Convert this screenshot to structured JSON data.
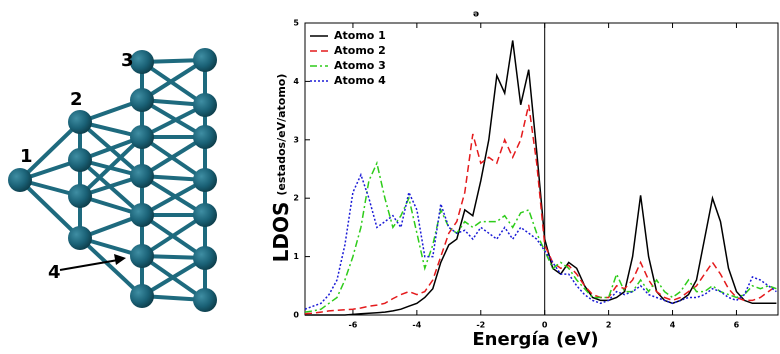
{
  "diagram": {
    "labels": [
      "1",
      "2",
      "3",
      "4"
    ]
  },
  "chart_data": {
    "type": "line",
    "annotation": "ə",
    "xlabel": "Energía (eV)",
    "ylabel": "LDOS",
    "ylabel_unit": "(estados/eV/atomo)",
    "xlim": [
      -7.5,
      7.3
    ],
    "ylim": [
      0,
      5
    ],
    "xticks": [
      -6,
      -4,
      -2,
      0,
      2,
      4,
      6
    ],
    "yticks": [
      0,
      1,
      2,
      3,
      4,
      5
    ],
    "vline": 0,
    "legend": "upper left",
    "x": [
      -7.5,
      -7.25,
      -7,
      -6.75,
      -6.5,
      -6.25,
      -6,
      -5.75,
      -5.5,
      -5.25,
      -5,
      -4.75,
      -4.5,
      -4.25,
      -4,
      -3.75,
      -3.5,
      -3.25,
      -3,
      -2.75,
      -2.5,
      -2.25,
      -2,
      -1.75,
      -1.5,
      -1.25,
      -1,
      -0.75,
      -0.5,
      -0.25,
      0,
      0.25,
      0.5,
      0.75,
      1,
      1.25,
      1.5,
      1.75,
      2,
      2.25,
      2.5,
      2.75,
      3,
      3.25,
      3.5,
      3.75,
      4,
      4.25,
      4.5,
      4.75,
      5,
      5.25,
      5.5,
      5.75,
      6,
      6.25,
      6.5,
      6.75,
      7,
      7.25
    ],
    "series": [
      {
        "name": "Atomo 1",
        "color": "#000000",
        "style": "solid",
        "values": [
          0,
          0,
          0,
          0,
          0,
          0,
          0.01,
          0.02,
          0.03,
          0.04,
          0.05,
          0.07,
          0.1,
          0.15,
          0.2,
          0.3,
          0.45,
          0.9,
          1.2,
          1.3,
          1.8,
          1.7,
          2.3,
          3.0,
          4.1,
          3.8,
          4.7,
          3.6,
          4.2,
          2.8,
          1.3,
          0.8,
          0.7,
          0.9,
          0.8,
          0.5,
          0.3,
          0.25,
          0.25,
          0.3,
          0.4,
          1.0,
          2.05,
          1.0,
          0.4,
          0.25,
          0.2,
          0.25,
          0.35,
          0.6,
          1.3,
          2.0,
          1.6,
          0.8,
          0.4,
          0.25,
          0.2,
          0.2,
          0.2,
          0.2
        ]
      },
      {
        "name": "Atomo 2",
        "color": "#e41a1c",
        "style": "dashed",
        "values": [
          0.02,
          0.03,
          0.05,
          0.07,
          0.08,
          0.09,
          0.1,
          0.12,
          0.15,
          0.17,
          0.2,
          0.28,
          0.35,
          0.4,
          0.35,
          0.4,
          0.6,
          1.0,
          1.4,
          1.6,
          2.1,
          3.1,
          2.6,
          2.7,
          2.6,
          3.0,
          2.7,
          3.0,
          3.6,
          2.6,
          1.2,
          0.9,
          0.8,
          0.85,
          0.7,
          0.5,
          0.35,
          0.3,
          0.3,
          0.5,
          0.45,
          0.6,
          0.9,
          0.6,
          0.4,
          0.3,
          0.25,
          0.3,
          0.4,
          0.5,
          0.7,
          0.9,
          0.7,
          0.45,
          0.3,
          0.25,
          0.25,
          0.3,
          0.4,
          0.5
        ]
      },
      {
        "name": "Atomo 3",
        "color": "#2ecc1a",
        "style": "dashdot",
        "values": [
          0.05,
          0.07,
          0.1,
          0.2,
          0.3,
          0.6,
          1.0,
          1.5,
          2.3,
          2.6,
          2.0,
          1.5,
          1.7,
          2.0,
          1.4,
          0.8,
          1.2,
          1.8,
          1.5,
          1.4,
          1.6,
          1.5,
          1.6,
          1.6,
          1.6,
          1.7,
          1.5,
          1.75,
          1.8,
          1.4,
          1.1,
          0.8,
          0.9,
          0.8,
          0.6,
          0.45,
          0.3,
          0.3,
          0.3,
          0.7,
          0.4,
          0.4,
          0.6,
          0.4,
          0.6,
          0.4,
          0.3,
          0.4,
          0.6,
          0.4,
          0.4,
          0.5,
          0.4,
          0.35,
          0.3,
          0.35,
          0.5,
          0.45,
          0.5,
          0.45
        ]
      },
      {
        "name": "Atomo 4",
        "color": "#1a1ad6",
        "style": "dotted",
        "values": [
          0.1,
          0.15,
          0.2,
          0.35,
          0.6,
          1.2,
          2.1,
          2.4,
          2.0,
          1.5,
          1.6,
          1.7,
          1.5,
          2.1,
          1.8,
          1.0,
          1.0,
          1.9,
          1.5,
          1.4,
          1.45,
          1.3,
          1.5,
          1.4,
          1.3,
          1.5,
          1.3,
          1.5,
          1.4,
          1.3,
          1.1,
          0.9,
          0.7,
          0.7,
          0.5,
          0.35,
          0.25,
          0.2,
          0.25,
          0.4,
          0.35,
          0.4,
          0.5,
          0.35,
          0.3,
          0.25,
          0.2,
          0.25,
          0.3,
          0.3,
          0.35,
          0.45,
          0.4,
          0.3,
          0.25,
          0.35,
          0.65,
          0.6,
          0.5,
          0.4
        ]
      }
    ]
  }
}
